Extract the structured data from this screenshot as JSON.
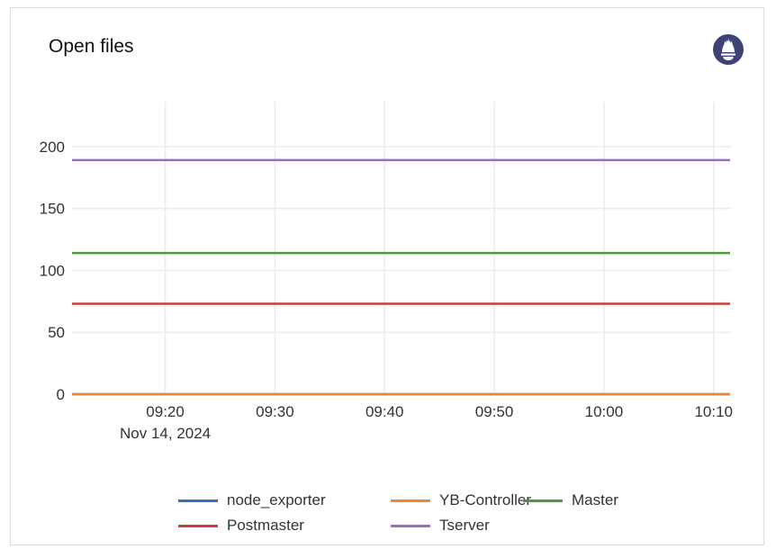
{
  "panel": {
    "title": "Open files",
    "icon": "prometheus-icon"
  },
  "chart_data": {
    "type": "line",
    "title": "Open files",
    "xlabel": "",
    "ylabel": "",
    "x_range": [
      "09:11:30",
      "10:11:30"
    ],
    "x_ticks": [
      "09:20",
      "09:30",
      "09:40",
      "09:50",
      "10:00",
      "10:10"
    ],
    "x_date_label": "Nov 14, 2024",
    "ylim": [
      0,
      236
    ],
    "y_ticks": [
      0,
      50,
      100,
      150,
      200
    ],
    "grid": true,
    "legend_position": "bottom",
    "series": [
      {
        "name": "node_exporter",
        "color": "#3274b8",
        "x": [
          "09:11:30",
          "10:11:30"
        ],
        "values": [
          0,
          0
        ]
      },
      {
        "name": "YB-Controller",
        "color": "#ee8636",
        "x": [
          "09:11:30",
          "10:11:30"
        ],
        "values": [
          0,
          0
        ]
      },
      {
        "name": "Master",
        "color": "#4c9d3a",
        "x": [
          "09:11:30",
          "10:11:30"
        ],
        "values": [
          114,
          114
        ]
      },
      {
        "name": "Postmaster",
        "color": "#c9403a",
        "x": [
          "09:11:30",
          "10:11:30"
        ],
        "values": [
          73,
          73
        ]
      },
      {
        "name": "Tserver",
        "color": "#9370c2",
        "x": [
          "09:11:30",
          "10:11:30"
        ],
        "values": [
          189,
          189
        ]
      }
    ]
  }
}
